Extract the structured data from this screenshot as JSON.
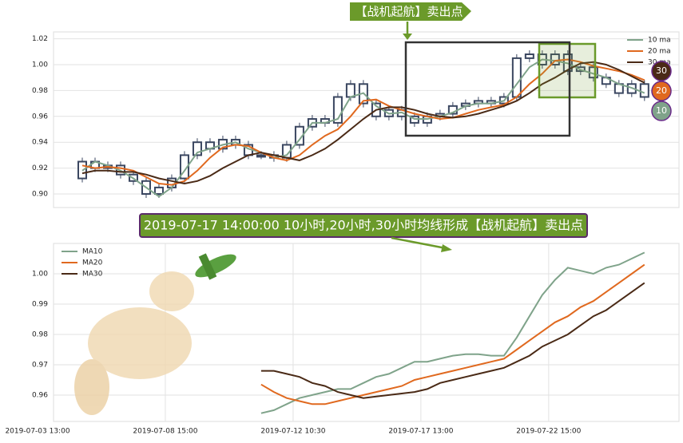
{
  "chart_data": [
    {
      "type": "candlestick",
      "annotation": "【战机起航】卖出点",
      "xlim": [
        2.5,
        100.4
      ],
      "ylim": [
        0.8895,
        1.0253
      ],
      "yticks": [
        {
          "value": 0.9,
          "label": "0.90"
        },
        0.92,
        0.94,
        0.96,
        0.98,
        {
          "value": 1.0,
          "label": "1.00"
        },
        1.02
      ],
      "grid": true,
      "legend": "upper right",
      "x": [
        7,
        9,
        11,
        13,
        15,
        17,
        19,
        21,
        23,
        25,
        27,
        29,
        31,
        33,
        35,
        37,
        39,
        41,
        43,
        45,
        47,
        49,
        51,
        53,
        55,
        57,
        59,
        61,
        63,
        65,
        67,
        69,
        71,
        73,
        75,
        77,
        79,
        81,
        83,
        85,
        87,
        89,
        91,
        93,
        95
      ],
      "candles": {
        "color": "#3a4660",
        "open": [
          0.912,
          0.925,
          0.92,
          0.922,
          0.915,
          0.91,
          0.9,
          0.905,
          0.912,
          0.93,
          0.94,
          0.935,
          0.942,
          0.938,
          0.93,
          0.93,
          0.928,
          0.938,
          0.952,
          0.958,
          0.955,
          0.975,
          0.985,
          0.97,
          0.96,
          0.965,
          0.96,
          0.955,
          0.96,
          0.962,
          0.968,
          0.97,
          0.972,
          0.97,
          0.975,
          1.005,
          1.008,
          1.0,
          1.008,
          0.995,
          0.998,
          0.99,
          0.985,
          0.978,
          0.985
        ],
        "close": [
          0.925,
          0.92,
          0.922,
          0.915,
          0.91,
          0.9,
          0.905,
          0.912,
          0.93,
          0.94,
          0.935,
          0.942,
          0.938,
          0.93,
          0.93,
          0.928,
          0.938,
          0.952,
          0.958,
          0.955,
          0.975,
          0.985,
          0.97,
          0.96,
          0.965,
          0.96,
          0.955,
          0.96,
          0.962,
          0.968,
          0.97,
          0.972,
          0.97,
          0.975,
          1.005,
          1.008,
          1.0,
          1.008,
          0.995,
          0.998,
          0.99,
          0.985,
          0.978,
          0.985,
          0.975
        ]
      },
      "series": [
        {
          "name": "10 ma",
          "color": "#7fa38a",
          "values": [
            0.918,
            0.925,
            0.922,
            0.918,
            0.912,
            0.905,
            0.898,
            0.905,
            0.918,
            0.932,
            0.935,
            0.938,
            0.94,
            0.935,
            0.932,
            0.928,
            0.93,
            0.942,
            0.955,
            0.955,
            0.958,
            0.975,
            0.978,
            0.968,
            0.962,
            0.963,
            0.958,
            0.958,
            0.96,
            0.963,
            0.968,
            0.97,
            0.97,
            0.972,
            0.985,
            0.998,
            1.004,
            1.003,
            1.001,
            0.996,
            0.993,
            0.99,
            0.985,
            0.982,
            0.978
          ]
        },
        {
          "name": "20 ma",
          "color": "#e0691f",
          "values": [
            0.922,
            0.92,
            0.921,
            0.92,
            0.918,
            0.913,
            0.908,
            0.907,
            0.91,
            0.918,
            0.928,
            0.936,
            0.938,
            0.937,
            0.932,
            0.928,
            0.926,
            0.93,
            0.938,
            0.945,
            0.95,
            0.96,
            0.972,
            0.973,
            0.968,
            0.965,
            0.962,
            0.96,
            0.958,
            0.959,
            0.962,
            0.965,
            0.967,
            0.969,
            0.975,
            0.985,
            0.993,
            1.003,
            1.004,
            1.002,
            0.999,
            0.997,
            0.995,
            0.992,
            0.988
          ]
        },
        {
          "name": "30 ma",
          "color": "#4a2a16",
          "values": [
            0.916,
            0.918,
            0.918,
            0.917,
            0.917,
            0.915,
            0.912,
            0.91,
            0.908,
            0.91,
            0.914,
            0.92,
            0.925,
            0.93,
            0.932,
            0.93,
            0.928,
            0.926,
            0.93,
            0.935,
            0.942,
            0.95,
            0.958,
            0.965,
            0.967,
            0.967,
            0.965,
            0.962,
            0.96,
            0.959,
            0.96,
            0.962,
            0.965,
            0.968,
            0.972,
            0.978,
            0.985,
            0.99,
            0.996,
            1.001,
            1.002,
            1.0,
            0.996,
            0.991,
            0.986
          ]
        }
      ],
      "badges": [
        "30",
        "20",
        "10"
      ]
    },
    {
      "type": "line",
      "annotation": "2019-07-17 14:00:00 10小时,20小时,30小时均线形成【战机起航】卖出点",
      "xlim": [
        2.5,
        100.4
      ],
      "xticks": [
        {
          "value": 0,
          "label": "2019-07-03 13:00"
        },
        {
          "value": 20,
          "label": "2019-07-08 15:00"
        },
        {
          "value": 40,
          "label": "2019-07-12 10:30"
        },
        {
          "value": 60,
          "label": "2019-07-17 13:00"
        },
        {
          "value": 80,
          "label": "2019-07-22 15:00"
        }
      ],
      "ylim": [
        0.9513,
        1.01
      ],
      "yticks": [
        0.96,
        0.97,
        0.98,
        0.99,
        {
          "value": 1.0,
          "label": "1.00"
        }
      ],
      "grid": true,
      "legend": "upper left",
      "x": [
        35,
        37,
        39,
        41,
        43,
        45,
        47,
        49,
        51,
        53,
        55,
        57,
        59,
        61,
        63,
        65,
        67,
        69,
        71,
        73,
        75,
        77,
        79,
        81,
        83,
        85,
        87,
        89,
        91,
        93,
        95
      ],
      "series": [
        {
          "name": "MA10",
          "color": "#7fa38a",
          "values": [
            0.954,
            0.955,
            0.957,
            0.959,
            0.96,
            0.961,
            0.962,
            0.962,
            0.964,
            0.966,
            0.967,
            0.969,
            0.971,
            0.971,
            0.972,
            0.973,
            0.9735,
            0.9735,
            0.973,
            0.973,
            0.979,
            0.986,
            0.993,
            0.998,
            1.002,
            1.001,
            1.0,
            1.002,
            1.003,
            1.005,
            1.007
          ]
        },
        {
          "name": "MA20",
          "color": "#e0691f",
          "values": [
            0.9635,
            0.961,
            0.959,
            0.958,
            0.957,
            0.957,
            0.958,
            0.959,
            0.96,
            0.961,
            0.962,
            0.963,
            0.965,
            0.966,
            0.967,
            0.968,
            0.969,
            0.97,
            0.971,
            0.972,
            0.975,
            0.978,
            0.981,
            0.984,
            0.986,
            0.989,
            0.991,
            0.994,
            0.997,
            1.0,
            1.003
          ]
        },
        {
          "name": "MA30",
          "color": "#4a2a16",
          "values": [
            0.968,
            0.968,
            0.967,
            0.966,
            0.964,
            0.963,
            0.961,
            0.96,
            0.959,
            0.9595,
            0.96,
            0.9605,
            0.961,
            0.962,
            0.964,
            0.965,
            0.966,
            0.967,
            0.968,
            0.969,
            0.971,
            0.973,
            0.976,
            0.978,
            0.98,
            0.983,
            0.986,
            0.988,
            0.991,
            0.994,
            0.997
          ]
        }
      ]
    }
  ]
}
